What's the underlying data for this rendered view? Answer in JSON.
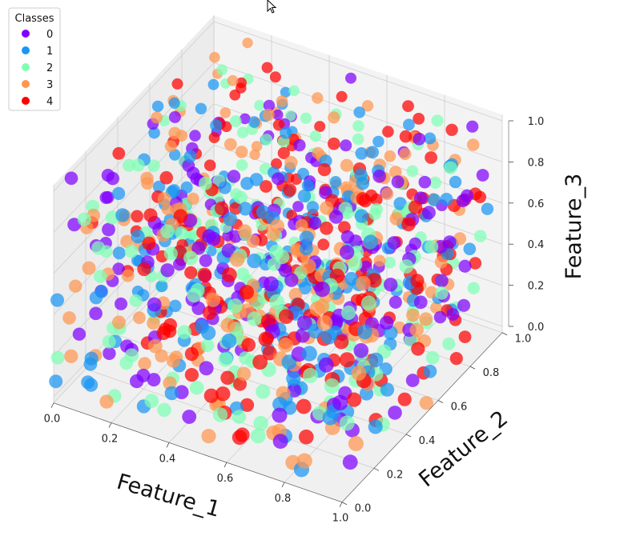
{
  "chart_data": {
    "type": "scatter3d",
    "xlabel": "Feature_1",
    "ylabel": "Feature_2",
    "zlabel": "Feature_3",
    "xlim": [
      0,
      1
    ],
    "ylim": [
      0,
      1
    ],
    "zlim": [
      0,
      1
    ],
    "xticks": [
      "0.0",
      "0.2",
      "0.4",
      "0.6",
      "0.8",
      "1.0"
    ],
    "yticks": [
      "0.0",
      "0.2",
      "0.4",
      "0.6",
      "0.8",
      "1.0"
    ],
    "zticks": [
      "0.0",
      "0.2",
      "0.4",
      "0.6",
      "0.8",
      "1.0"
    ],
    "grid": true,
    "legend": {
      "title": "Classes",
      "placement": "top-left",
      "entries": [
        {
          "label": "0",
          "color": "#8000ff"
        },
        {
          "label": "1",
          "color": "#1996f3"
        },
        {
          "label": "2",
          "color": "#80ffb4"
        },
        {
          "label": "3",
          "color": "#ff964f"
        },
        {
          "label": "4",
          "color": "#ff0000"
        }
      ]
    },
    "point_count_per_class": 200,
    "note_distribution": "points approximately uniform in the unit cube for all five classes"
  }
}
